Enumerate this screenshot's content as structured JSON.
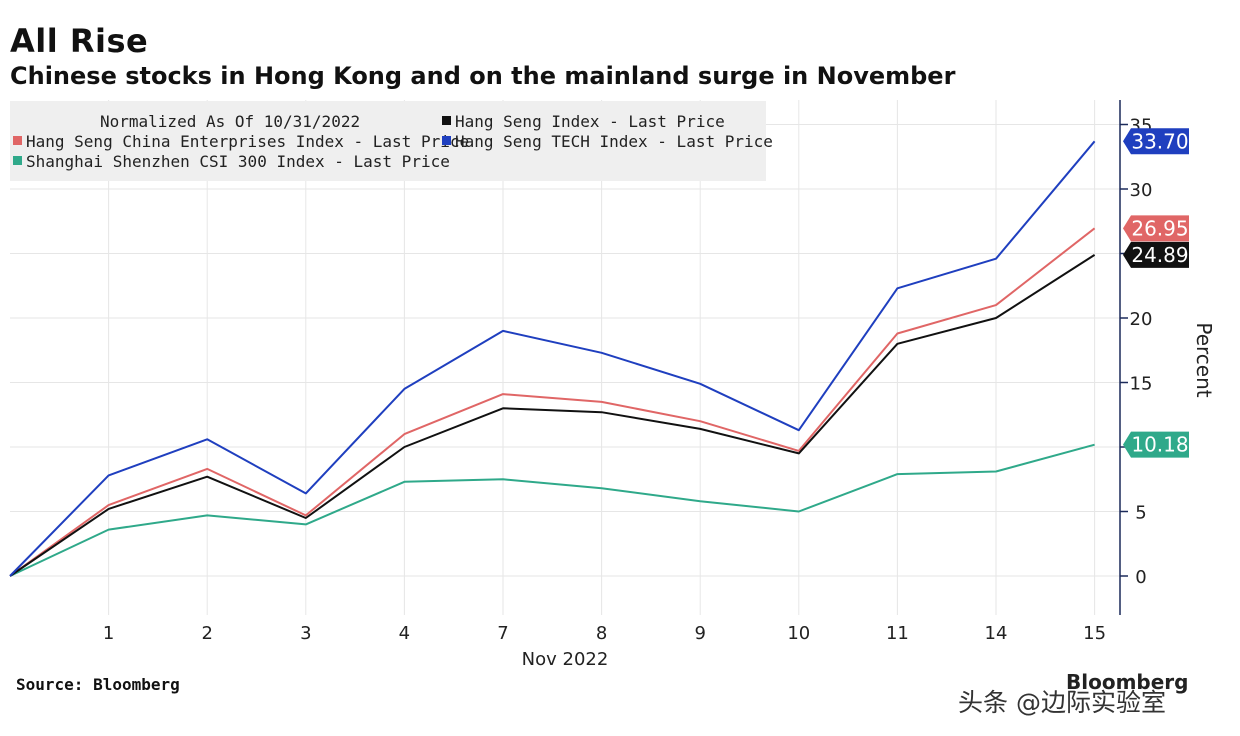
{
  "title": "All Rise",
  "subtitle": "Chinese stocks in Hong Kong and on the mainland surge in November",
  "source": "Source: Bloomberg",
  "brand": "Bloomberg",
  "watermark": "头条 @边际实验室",
  "chart_data": {
    "type": "line",
    "legend_title": "Normalized As Of 10/31/2022",
    "legend_placement": "top-left",
    "x_categories": [
      "",
      "1",
      "2",
      "3",
      "4",
      "7",
      "8",
      "9",
      "10",
      "11",
      "14",
      "15"
    ],
    "xlabel": "Nov 2022",
    "ylabel": "Percent",
    "ylim": [
      -3,
      36
    ],
    "yticks": [
      0,
      5,
      10,
      15,
      20,
      25,
      30,
      35
    ],
    "grid": true,
    "y_axis_side": "right",
    "series": [
      {
        "name": "Hang Seng Index - Last Price",
        "color": "#111111",
        "values": [
          0,
          5.2,
          7.7,
          4.5,
          10.0,
          13.0,
          12.7,
          11.4,
          9.5,
          18.0,
          20.0,
          24.89
        ],
        "end_label": "24.89"
      },
      {
        "name": "Hang Seng China Enterprises Index - Last Price",
        "color": "#e06666",
        "values": [
          0,
          5.5,
          8.3,
          4.7,
          11.0,
          14.1,
          13.5,
          12.0,
          9.7,
          18.8,
          21.0,
          26.95
        ],
        "end_label": "26.95"
      },
      {
        "name": "Hang Seng TECH Index - Last Price",
        "color": "#1f3fbf",
        "values": [
          0,
          7.8,
          10.6,
          6.4,
          14.5,
          19.0,
          17.3,
          14.9,
          11.3,
          22.3,
          24.6,
          33.7
        ],
        "end_label": "33.70"
      },
      {
        "name": "Shanghai Shenzhen CSI 300 Index - Last Price",
        "color": "#2fa98a",
        "values": [
          0,
          3.6,
          4.7,
          4.0,
          7.3,
          7.5,
          6.8,
          5.8,
          5.0,
          7.9,
          8.1,
          10.18
        ],
        "end_label": "10.18"
      }
    ]
  }
}
